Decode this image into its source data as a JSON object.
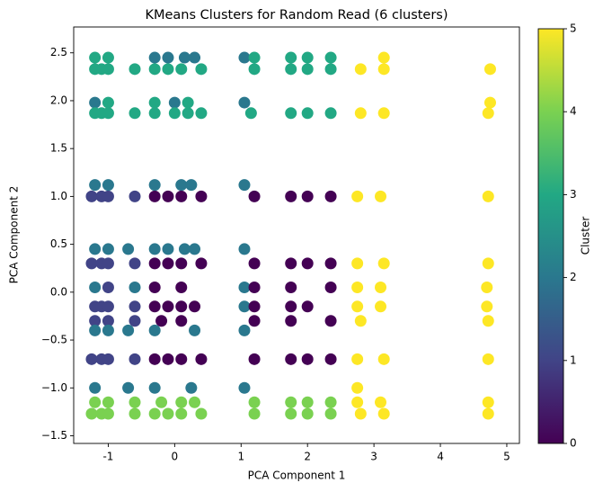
{
  "chart_data": {
    "type": "scatter",
    "title": "KMeans Clusters for Random Read (6 clusters)",
    "x_label": "PCA Component 1",
    "y_label": "PCA Component 2",
    "colorbar_label": "Cluster",
    "colormap": "viridis",
    "clim": [
      0,
      5
    ],
    "colorbar_ticks": [
      0,
      1,
      2,
      3,
      4,
      5
    ],
    "xlim": [
      -1.52,
      5.19
    ],
    "ylim": [
      -1.58,
      2.77
    ],
    "xticks": [
      -1,
      0,
      1,
      2,
      3,
      4,
      5
    ],
    "yticks": [
      {
        "value": -1.5,
        "label": "−1.5"
      },
      {
        "value": -1,
        "label": "−1.0"
      },
      {
        "value": -0.5,
        "label": "−0.5"
      },
      {
        "value": 0,
        "label": "0.0"
      },
      0.5,
      {
        "value": 1,
        "label": "1.0"
      },
      1.5,
      {
        "value": 2,
        "label": "2.0"
      },
      2.5
    ],
    "x": [
      -1.2,
      -1.0,
      -0.3,
      -0.1,
      0.15,
      0.3,
      1.05,
      1.2,
      1.75,
      2.0,
      2.35,
      3.15,
      -1.2,
      -1.1,
      -1.0,
      -0.6,
      -0.3,
      -0.1,
      0.1,
      0.4,
      1.2,
      1.75,
      2.0,
      2.35,
      2.8,
      3.15,
      4.75,
      -1.2,
      -1.0,
      -0.3,
      0,
      0.2,
      1.05,
      4.75,
      -1.2,
      -1.1,
      -1.0,
      -0.6,
      -0.3,
      0,
      0.2,
      0.4,
      1.15,
      1.75,
      2.0,
      2.35,
      2.8,
      3.15,
      4.72,
      -1.2,
      -1.0,
      -0.3,
      0.1,
      0.25,
      1.05,
      -1.25,
      -1.1,
      -1.0,
      -0.6,
      -0.3,
      -0.1,
      0.1,
      0.4,
      1.2,
      1.75,
      2.0,
      2.35,
      2.75,
      3.1,
      4.72,
      -1.2,
      -1.0,
      -0.7,
      -0.3,
      -0.1,
      0.15,
      0.3,
      1.05,
      -1.25,
      -1.1,
      -1.0,
      -0.6,
      -0.3,
      -0.1,
      0.1,
      0.4,
      1.2,
      1.75,
      2.0,
      2.35,
      2.75,
      3.15,
      4.72,
      -1.2,
      -1.0,
      -0.6,
      -0.3,
      0.1,
      1.05,
      1.2,
      1.75,
      2.35,
      2.75,
      3.1,
      4.7,
      -1.2,
      -1.1,
      -1.0,
      -0.6,
      -0.3,
      -0.1,
      0.1,
      0.3,
      1.05,
      1.2,
      1.75,
      2.0,
      2.75,
      3.1,
      4.7,
      -1.2,
      -1.0,
      -0.6,
      -0.2,
      0.1,
      1.2,
      1.75,
      2.35,
      2.8,
      4.72,
      -1.2,
      -1.0,
      -0.7,
      -0.3,
      0.3,
      1.05,
      -1.25,
      -1.1,
      -1.0,
      -0.6,
      -0.3,
      -0.1,
      0.1,
      0.4,
      1.2,
      1.75,
      2.0,
      2.35,
      2.75,
      3.15,
      4.72,
      -1.2,
      -0.7,
      -0.3,
      0.25,
      1.05,
      2.75,
      -1.2,
      -1.0,
      -0.6,
      -0.2,
      0.1,
      0.3,
      1.2,
      1.75,
      2.0,
      2.35,
      2.75,
      3.1,
      4.72,
      -1.25,
      -1.1,
      -1.0,
      -0.6,
      -0.3,
      -0.1,
      0.1,
      0.4,
      1.2,
      1.75,
      2.0,
      2.35,
      2.8,
      3.15,
      4.72
    ],
    "values": [
      2.45,
      2.45,
      2.45,
      2.45,
      2.45,
      2.45,
      2.45,
      2.45,
      2.45,
      2.45,
      2.45,
      2.45,
      2.33,
      2.33,
      2.33,
      2.33,
      2.33,
      2.33,
      2.33,
      2.33,
      2.33,
      2.33,
      2.33,
      2.33,
      2.33,
      2.33,
      2.33,
      1.98,
      1.98,
      1.98,
      1.98,
      1.98,
      1.98,
      1.98,
      1.87,
      1.87,
      1.87,
      1.87,
      1.87,
      1.87,
      1.87,
      1.87,
      1.87,
      1.87,
      1.87,
      1.87,
      1.87,
      1.87,
      1.87,
      1.12,
      1.12,
      1.12,
      1.12,
      1.12,
      1.12,
      1.0,
      1.0,
      1.0,
      1.0,
      1.0,
      1.0,
      1.0,
      1.0,
      1.0,
      1.0,
      1.0,
      1.0,
      1.0,
      1.0,
      1.0,
      0.45,
      0.45,
      0.45,
      0.45,
      0.45,
      0.45,
      0.45,
      0.45,
      0.3,
      0.3,
      0.3,
      0.3,
      0.3,
      0.3,
      0.3,
      0.3,
      0.3,
      0.3,
      0.3,
      0.3,
      0.3,
      0.3,
      0.3,
      0.05,
      0.05,
      0.05,
      0.05,
      0.05,
      0.05,
      0.05,
      0.05,
      0.05,
      0.05,
      0.05,
      0.05,
      -0.15,
      -0.15,
      -0.15,
      -0.15,
      -0.15,
      -0.15,
      -0.15,
      -0.15,
      -0.15,
      -0.15,
      -0.15,
      -0.15,
      -0.15,
      -0.15,
      -0.15,
      -0.3,
      -0.3,
      -0.3,
      -0.3,
      -0.3,
      -0.3,
      -0.3,
      -0.3,
      -0.3,
      -0.3,
      -0.4,
      -0.4,
      -0.4,
      -0.4,
      -0.4,
      -0.4,
      -0.7,
      -0.7,
      -0.7,
      -0.7,
      -0.7,
      -0.7,
      -0.7,
      -0.7,
      -0.7,
      -0.7,
      -0.7,
      -0.7,
      -0.7,
      -0.7,
      -0.7,
      -1.0,
      -1.0,
      -1.0,
      -1.0,
      -1.0,
      -1.0,
      -1.15,
      -1.15,
      -1.15,
      -1.15,
      -1.15,
      -1.15,
      -1.15,
      -1.15,
      -1.15,
      -1.15,
      -1.15,
      -1.15,
      -1.15,
      -1.27,
      -1.27,
      -1.27,
      -1.27,
      -1.27,
      -1.27,
      -1.27,
      -1.27,
      -1.27,
      -1.27,
      -1.27,
      -1.27,
      -1.27,
      -1.27,
      -1.27
    ],
    "cluster": [
      3,
      3,
      2,
      2,
      2,
      2,
      2,
      3,
      3,
      3,
      3,
      5,
      3,
      3,
      3,
      3,
      3,
      3,
      3,
      3,
      3,
      3,
      3,
      3,
      5,
      5,
      5,
      2,
      3,
      3,
      2,
      3,
      2,
      5,
      3,
      3,
      3,
      3,
      3,
      3,
      3,
      3,
      3,
      3,
      3,
      3,
      5,
      5,
      5,
      2,
      2,
      2,
      2,
      2,
      2,
      1,
      1,
      1,
      1,
      0,
      0,
      0,
      0,
      0,
      0,
      0,
      0,
      5,
      5,
      5,
      2,
      2,
      2,
      2,
      2,
      2,
      2,
      2,
      1,
      1,
      1,
      1,
      0,
      0,
      0,
      0,
      0,
      0,
      0,
      0,
      5,
      5,
      5,
      2,
      1,
      2,
      0,
      0,
      2,
      0,
      0,
      0,
      5,
      5,
      5,
      1,
      1,
      1,
      1,
      0,
      0,
      0,
      0,
      2,
      0,
      0,
      0,
      5,
      5,
      5,
      1,
      1,
      1,
      0,
      0,
      0,
      0,
      0,
      5,
      5,
      2,
      2,
      2,
      2,
      2,
      2,
      1,
      1,
      1,
      1,
      0,
      0,
      0,
      0,
      0,
      0,
      0,
      0,
      5,
      5,
      5,
      2,
      2,
      2,
      2,
      2,
      5,
      4,
      4,
      4,
      4,
      4,
      4,
      4,
      4,
      4,
      4,
      5,
      5,
      5,
      4,
      4,
      4,
      4,
      4,
      4,
      4,
      4,
      4,
      4,
      4,
      4,
      5,
      5,
      5
    ]
  }
}
